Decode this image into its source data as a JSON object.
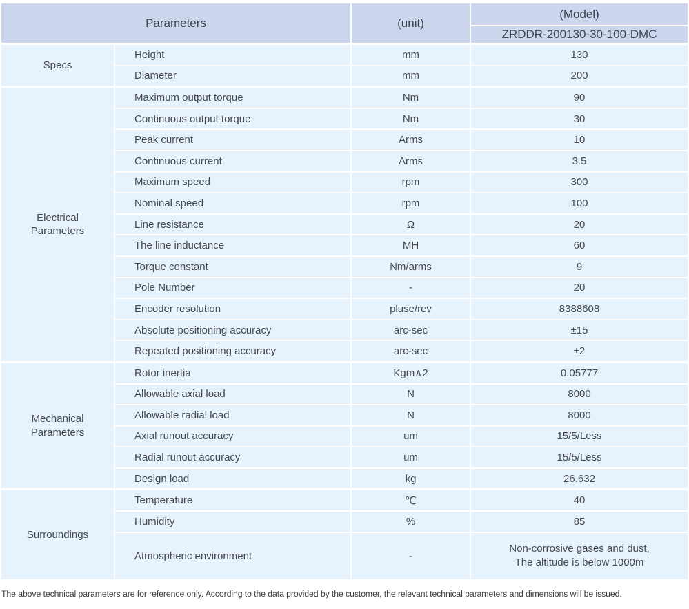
{
  "header": {
    "parameters_label": "Parameters",
    "unit_label": "(unit)",
    "model_label": "(Model)",
    "model_number": "ZRDDR-200130-30-100-DMC"
  },
  "colors": {
    "header_bg": "#ccd6ec",
    "row_bg": "#e7f3fc",
    "text": "#45494d"
  },
  "sections": [
    {
      "group": "Specs",
      "rows": [
        {
          "name": "Height",
          "unit": "mm",
          "value": "130"
        },
        {
          "name": "Diameter",
          "unit": "mm",
          "value": "200"
        }
      ]
    },
    {
      "group": "Electrical Parameters",
      "rows": [
        {
          "name": "Maximum output torque",
          "unit": "Nm",
          "value": "90"
        },
        {
          "name": "Continuous output torque",
          "unit": "Nm",
          "value": "30"
        },
        {
          "name": "Peak current",
          "unit": "Arms",
          "value": "10"
        },
        {
          "name": "Continuous current",
          "unit": "Arms",
          "value": "3.5"
        },
        {
          "name": "Maximum speed",
          "unit": "rpm",
          "value": "300"
        },
        {
          "name": "Nominal speed",
          "unit": "rpm",
          "value": "100"
        },
        {
          "name": "Line resistance",
          "unit": "Ω",
          "value": "20"
        },
        {
          "name": "The line inductance",
          "unit": "MH",
          "value": "60"
        },
        {
          "name": "Torque constant",
          "unit": "Nm/arms",
          "value": "9"
        },
        {
          "name": "Pole Number",
          "unit": "-",
          "value": "20"
        },
        {
          "name": "Encoder resolution",
          "unit": "pluse/rev",
          "value": "8388608"
        },
        {
          "name": "Absolute positioning accuracy",
          "unit": "arc-sec",
          "value": "±15"
        },
        {
          "name": "Repeated positioning accuracy",
          "unit": "arc-sec",
          "value": "±2"
        }
      ]
    },
    {
      "group": "Mechanical Parameters",
      "rows": [
        {
          "name": "Rotor inertia",
          "unit": "Kgm∧2",
          "value": "0.05777"
        },
        {
          "name": "Allowable axial load",
          "unit": "N",
          "value": "8000"
        },
        {
          "name": "Allowable radial load",
          "unit": "N",
          "value": "8000"
        },
        {
          "name": "Axial runout accuracy",
          "unit": "um",
          "value": "15/5/Less"
        },
        {
          "name": "Radial runout accuracy",
          "unit": "um",
          "value": "15/5/Less"
        },
        {
          "name": "Design load",
          "unit": "kg",
          "value": "26.632"
        }
      ]
    },
    {
      "group": "Surroundings",
      "rows": [
        {
          "name": "Temperature",
          "unit": "℃",
          "value": "40"
        },
        {
          "name": "Humidity",
          "unit": "%",
          "value": "85"
        },
        {
          "name": "Atmospheric environment",
          "unit": "-",
          "value": "Non-corrosive gases and dust,\nThe altitude is below 1000m"
        }
      ]
    }
  ],
  "footer_note": "The above technical parameters are for reference only. According to the data provided by the customer, the relevant technical parameters and dimensions will be issued."
}
